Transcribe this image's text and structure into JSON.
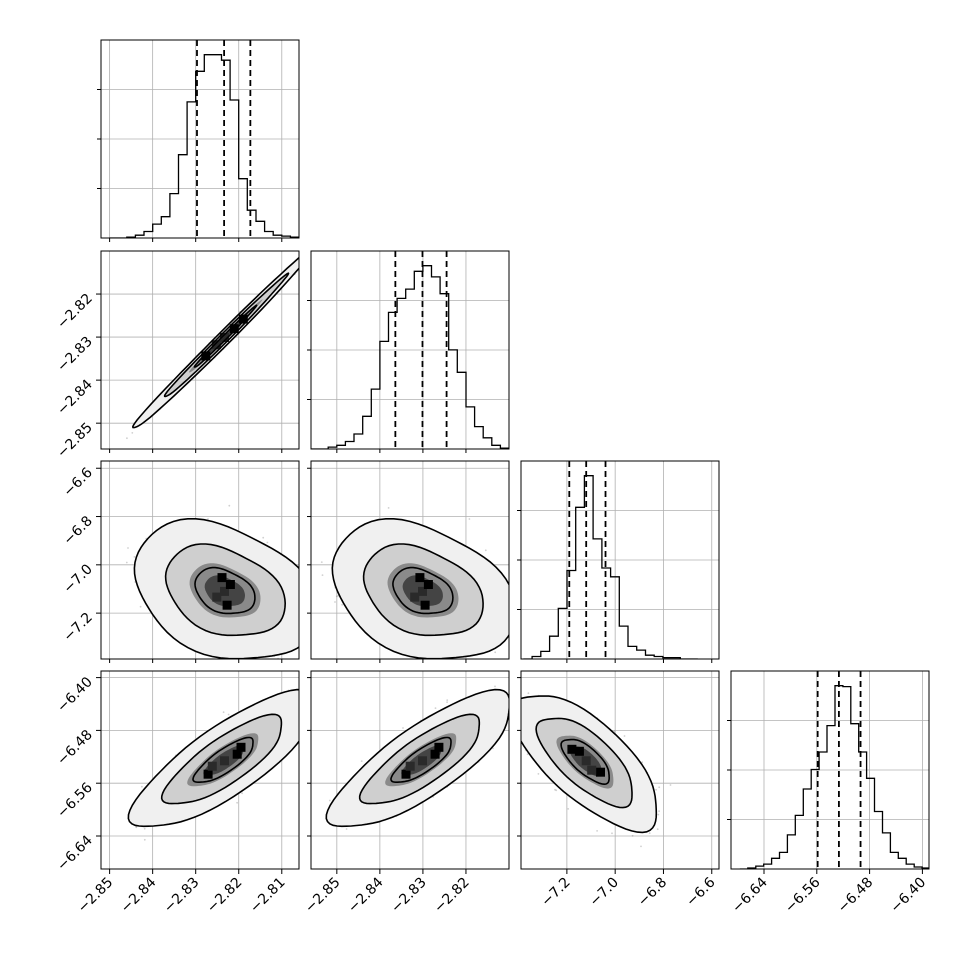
{
  "chart_data": {
    "type": "corner",
    "title": "",
    "n_parameters": 4,
    "grid": true,
    "parameters": [
      {
        "range": [
          -2.852,
          -2.806
        ],
        "tick_values": [
          -2.85,
          -2.84,
          -2.83,
          -2.82,
          -2.81
        ],
        "tick_labels": [
          "−2.85",
          "−2.84",
          "−2.83",
          "−2.82",
          "−2.81"
        ],
        "quantiles": [
          -2.8297,
          -2.8234,
          -2.8173
        ],
        "histogram": {
          "bins": [
            -2.85,
            -2.848,
            -2.846,
            -2.844,
            -2.842,
            -2.84,
            -2.838,
            -2.836,
            -2.834,
            -2.832,
            -2.83,
            -2.828,
            -2.826,
            -2.824,
            -2.822,
            -2.82,
            -2.818,
            -2.816,
            -2.814,
            -2.812,
            -2.81,
            -2.808,
            -2.806
          ],
          "counts": [
            0,
            0,
            1,
            3,
            7,
            15,
            23,
            48,
            90,
            147,
            180,
            198,
            198,
            192,
            149,
            64,
            30,
            18,
            7,
            3,
            2,
            1
          ]
        }
      },
      {
        "range": [
          -2.856,
          -2.81
        ],
        "tick_values": [
          -2.85,
          -2.84,
          -2.83,
          -2.82
        ],
        "tick_labels": [
          "−2.85",
          "−2.84",
          "−2.83",
          "−2.82"
        ],
        "quantiles": [
          -2.8364,
          -2.8301,
          -2.8245
        ],
        "histogram": {
          "bins": [
            -2.856,
            -2.854,
            -2.852,
            -2.85,
            -2.848,
            -2.846,
            -2.844,
            -2.842,
            -2.84,
            -2.838,
            -2.836,
            -2.834,
            -2.832,
            -2.83,
            -2.828,
            -2.826,
            -2.824,
            -2.822,
            -2.82,
            -2.818,
            -2.816,
            -2.814,
            -2.812,
            -2.81
          ],
          "counts": [
            0,
            0,
            2,
            4,
            8,
            16,
            35,
            64,
            115,
            146,
            161,
            171,
            190,
            196,
            184,
            166,
            106,
            82,
            45,
            24,
            12,
            4,
            1
          ]
        }
      },
      {
        "range": [
          -7.39,
          -6.57
        ],
        "tick_values": [
          -7.2,
          -7.0,
          -6.8,
          -6.6
        ],
        "tick_labels": [
          "−7.2",
          "−7.0",
          "−6.8",
          "−6.6"
        ],
        "quantiles": [
          -7.19,
          -7.12,
          -7.04
        ],
        "histogram": {
          "bins": [
            -7.38,
            -7.3439,
            -7.3078,
            -7.2717,
            -7.2356,
            -7.1995,
            -7.1634,
            -7.1273,
            -7.0912,
            -7.0551,
            -7.019,
            -6.9829,
            -6.9468,
            -6.9107,
            -6.8746,
            -6.8385,
            -6.8024,
            -6.7663,
            -6.7302,
            -6.6941,
            -6.658
          ],
          "counts": [
            0,
            2,
            6,
            18,
            40,
            70,
            120,
            145,
            95,
            72,
            65,
            26,
            10,
            7,
            3,
            2,
            1,
            1,
            0,
            0
          ]
        }
      },
      {
        "range": [
          -6.69,
          -6.39
        ],
        "tick_values": [
          -6.64,
          -6.56,
          -6.48,
          -6.4
        ],
        "tick_labels": [
          "−6.64",
          "−6.56",
          "−6.48",
          "−6.40"
        ],
        "quantiles": [
          -6.5587,
          -6.5265,
          -6.4937
        ],
        "histogram": {
          "bins": [
            -6.6765,
            -6.6645,
            -6.6525,
            -6.6405,
            -6.6285,
            -6.6165,
            -6.6045,
            -6.5925,
            -6.5805,
            -6.5685,
            -6.5565,
            -6.5445,
            -6.5325,
            -6.5205,
            -6.5085,
            -6.4965,
            -6.4845,
            -6.4725,
            -6.4605,
            -6.4485,
            -6.4365,
            -6.4245,
            -6.4125,
            -6.4005,
            -6.3885
          ],
          "counts": [
            0,
            1,
            3,
            5,
            11,
            17,
            35,
            55,
            82,
            102,
            120,
            147,
            188,
            187,
            149,
            120,
            93,
            59,
            37,
            17,
            11,
            5,
            2,
            1
          ]
        }
      }
    ],
    "panels_2d": [
      {
        "row": 1,
        "col": 0,
        "center": [
          -2.8233,
          -2.8301
        ],
        "sd": [
          0.0072,
          0.0072
        ],
        "rho": 0.995,
        "levels": [
          0.39,
          0.86,
          0.99
        ]
      },
      {
        "row": 2,
        "col": 0,
        "center": [
          -2.8233,
          -7.11
        ],
        "sd": [
          0.007,
          0.095
        ],
        "rho": -0.3,
        "levels": [
          0.39,
          0.86,
          0.99
        ]
      },
      {
        "row": 2,
        "col": 1,
        "center": [
          -2.8301,
          -7.11
        ],
        "sd": [
          0.007,
          0.095
        ],
        "rho": -0.3,
        "levels": [
          0.39,
          0.86,
          0.99
        ]
      },
      {
        "row": 3,
        "col": 0,
        "center": [
          -2.8233,
          -6.526
        ],
        "sd": [
          0.007,
          0.034
        ],
        "rho": 0.8,
        "levels": [
          0.39,
          0.86,
          0.99
        ]
      },
      {
        "row": 3,
        "col": 1,
        "center": [
          -2.8301,
          -6.526
        ],
        "sd": [
          0.007,
          0.034
        ],
        "rho": 0.8,
        "levels": [
          0.39,
          0.86,
          0.99
        ]
      },
      {
        "row": 3,
        "col": 2,
        "center": [
          -7.12,
          -6.526
        ],
        "sd": [
          0.1,
          0.034
        ],
        "rho": -0.7,
        "levels": [
          0.39,
          0.86,
          0.99
        ]
      }
    ],
    "colors": {
      "line": "#000000",
      "grid": "#b0b0b0",
      "points": "#777777",
      "density_dark": "#000000",
      "density_light": "#f2f2f2"
    }
  }
}
